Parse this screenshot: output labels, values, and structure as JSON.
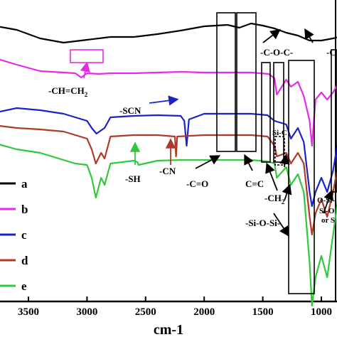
{
  "chart_data": {
    "type": "line",
    "xlabel": "cm-1",
    "xlim": [
      3800,
      800
    ],
    "x_reversed": true,
    "x_ticks": [
      3500,
      3000,
      2500,
      2000,
      1500,
      1000
    ],
    "grid": false,
    "legend_position": "left",
    "series": [
      {
        "name": "a",
        "color": "#000000",
        "x": [
          3800,
          3600,
          3400,
          3200,
          3000,
          2800,
          2600,
          2400,
          2200,
          2000,
          1800,
          1700,
          1600,
          1500,
          1400,
          1300,
          1200,
          1100,
          1000,
          900,
          800
        ],
        "y": [
          6,
          12,
          24,
          30,
          26,
          22,
          22,
          18,
          13,
          7,
          5,
          9,
          3,
          6,
          10,
          16,
          20,
          27,
          27,
          24,
          20
        ]
      },
      {
        "name": "b",
        "color": "#e829e8",
        "x": [
          3800,
          3600,
          3400,
          3200,
          3100,
          3050,
          3000,
          2900,
          2800,
          2600,
          2400,
          2200,
          2000,
          1800,
          1600,
          1450,
          1400,
          1380,
          1300,
          1260,
          1200,
          1150,
          1100,
          1080,
          1050,
          1000,
          950,
          900,
          850,
          800
        ],
        "y": [
          51,
          61,
          70,
          72,
          73,
          79,
          73,
          74,
          73,
          73,
          72,
          71,
          72,
          72,
          72,
          74,
          80,
          103,
          82,
          92,
          85,
          105,
          140,
          175,
          110,
          100,
          110,
          100,
          85,
          70
        ]
      },
      {
        "name": "c",
        "color": "#1a23c7",
        "x": [
          3800,
          3600,
          3400,
          3200,
          3000,
          2960,
          2920,
          2850,
          2800,
          2600,
          2400,
          2200,
          2170,
          2150,
          2130,
          2000,
          1800,
          1600,
          1460,
          1400,
          1300,
          1260,
          1200,
          1150,
          1100,
          1080,
          1050,
          1000,
          950,
          900,
          850,
          800
        ],
        "y": [
          129,
          122,
          125,
          130,
          140,
          150,
          158,
          150,
          135,
          133,
          132,
          133,
          140,
          175,
          138,
          130,
          130,
          130,
          132,
          140,
          145,
          165,
          150,
          170,
          240,
          260,
          240,
          220,
          240,
          210,
          160,
          140
        ]
      },
      {
        "name": "d",
        "color": "#b03a2a",
        "x": [
          3800,
          3600,
          3400,
          3200,
          3000,
          2960,
          2925,
          2880,
          2850,
          2800,
          2600,
          2400,
          2250,
          2240,
          2230,
          2000,
          1800,
          1600,
          1460,
          1400,
          1380,
          1300,
          1260,
          1200,
          1150,
          1100,
          1080,
          1050,
          1000,
          950,
          900,
          850,
          800
        ],
        "y": [
          146,
          150,
          152,
          155,
          165,
          180,
          200,
          185,
          193,
          162,
          160,
          160,
          162,
          190,
          162,
          160,
          160,
          160,
          162,
          175,
          190,
          185,
          200,
          185,
          200,
          275,
          300,
          270,
          250,
          275,
          240,
          195,
          170
        ]
      },
      {
        "name": "e",
        "color": "#2fc93b",
        "x": [
          3800,
          3600,
          3400,
          3200,
          3100,
          3000,
          2960,
          2925,
          2880,
          2850,
          2800,
          2600,
          2570,
          2560,
          2400,
          2200,
          2000,
          1800,
          1600,
          1460,
          1400,
          1380,
          1300,
          1260,
          1200,
          1150,
          1100,
          1080,
          1050,
          1000,
          950,
          900,
          850,
          800
        ],
        "y": [
          171,
          180,
          185,
          195,
          200,
          202,
          220,
          248,
          220,
          230,
          200,
          196,
          198,
          202,
          196,
          195,
          195,
          195,
          195,
          197,
          200,
          220,
          205,
          230,
          215,
          240,
          340,
          400,
          360,
          330,
          360,
          300,
          240,
          200
        ]
      }
    ],
    "annotations": [
      {
        "text": "-CH=CH",
        "subscript": "2",
        "x": 3100
      },
      {
        "text": "-SCN",
        "x": 2150
      },
      {
        "text": "-SH",
        "x": 2570
      },
      {
        "text": "-CN",
        "x": 2240
      },
      {
        "text": "-C=O",
        "x": 1720
      },
      {
        "text": "C=C",
        "x": 1620
      },
      {
        "text": "-C-O-C-",
        "x": 1050
      },
      {
        "text": "Si-C",
        "x": 1260
      },
      {
        "text": "-CH",
        "subscript": "2",
        "x": 1380
      },
      {
        "text": "-Si-O-Si-",
        "x": 1100
      },
      {
        "text": "O-Si-",
        "x": 830
      },
      {
        "text": "Si-O",
        "x": 830
      },
      {
        "text": "or S",
        "x": 830
      },
      {
        "text": "-C",
        "x": 830
      }
    ]
  }
}
